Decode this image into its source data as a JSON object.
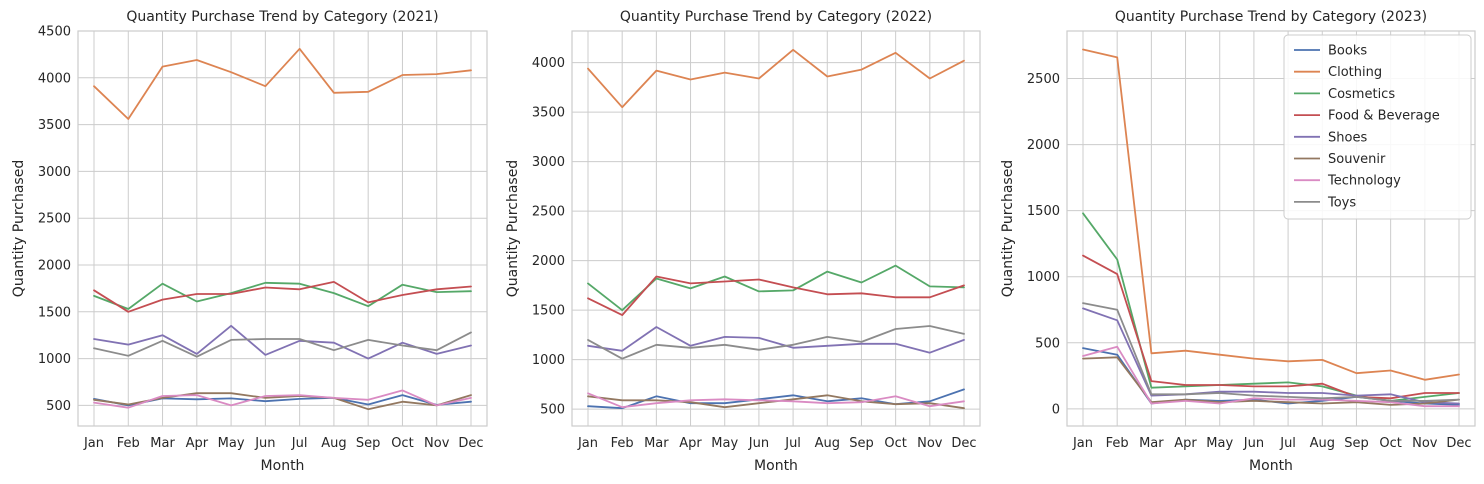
{
  "figure_colors": {
    "background": "#ffffff",
    "plot_background": "#ffffff",
    "grid": "#cccccc",
    "spine": "#cccccc",
    "text": "#262626"
  },
  "chart_data": [
    {
      "type": "line",
      "title": "Quantity Purchase Trend by Category (2021)",
      "xlabel": "Month",
      "ylabel": "Quantity Purchased",
      "categories": [
        "Jan",
        "Feb",
        "Mar",
        "Apr",
        "May",
        "Jun",
        "Jul",
        "Aug",
        "Sep",
        "Oct",
        "Nov",
        "Dec"
      ],
      "ylim": [
        280,
        4500
      ],
      "yticks": [
        500,
        1000,
        1500,
        2000,
        2500,
        3000,
        3500,
        4000,
        4500
      ],
      "grid": true,
      "legend": "none",
      "series": [
        {
          "name": "Books",
          "color": "#4c72b0",
          "values": [
            570,
            500,
            575,
            565,
            575,
            545,
            570,
            580,
            510,
            610,
            505,
            540
          ]
        },
        {
          "name": "Clothing",
          "color": "#dd8452",
          "values": [
            3910,
            3560,
            4120,
            4190,
            4060,
            3910,
            4310,
            3840,
            3850,
            4030,
            4040,
            4080
          ]
        },
        {
          "name": "Cosmetics",
          "color": "#55a868",
          "values": [
            1670,
            1530,
            1800,
            1610,
            1700,
            1810,
            1800,
            1700,
            1560,
            1790,
            1710,
            1720
          ]
        },
        {
          "name": "Food & Beverage",
          "color": "#c44e52",
          "values": [
            1730,
            1500,
            1630,
            1690,
            1690,
            1760,
            1740,
            1820,
            1600,
            1680,
            1740,
            1770
          ]
        },
        {
          "name": "Shoes",
          "color": "#8172b3",
          "values": [
            1210,
            1150,
            1250,
            1050,
            1350,
            1040,
            1190,
            1170,
            1000,
            1170,
            1050,
            1140
          ]
        },
        {
          "name": "Souvenir",
          "color": "#937860",
          "values": [
            560,
            510,
            580,
            630,
            630,
            580,
            600,
            580,
            460,
            540,
            500,
            610
          ]
        },
        {
          "name": "Technology",
          "color": "#da8bc3",
          "values": [
            530,
            475,
            600,
            610,
            500,
            600,
            610,
            580,
            560,
            660,
            500,
            580
          ]
        },
        {
          "name": "Toys",
          "color": "#8c8c8c",
          "values": [
            1110,
            1030,
            1190,
            1020,
            1200,
            1210,
            1210,
            1090,
            1200,
            1140,
            1090,
            1280
          ]
        }
      ]
    },
    {
      "type": "line",
      "title": "Quantity Purchase Trend by Category (2022)",
      "xlabel": "Month",
      "ylabel": "Quantity Purchased",
      "categories": [
        "Jan",
        "Feb",
        "Mar",
        "Apr",
        "May",
        "Jun",
        "Jul",
        "Aug",
        "Sep",
        "Oct",
        "Nov",
        "Dec"
      ],
      "ylim": [
        330,
        4320
      ],
      "yticks": [
        500,
        1000,
        1500,
        2000,
        2500,
        3000,
        3500,
        4000
      ],
      "grid": true,
      "legend": "none",
      "series": [
        {
          "name": "Books",
          "color": "#4c72b0",
          "values": [
            530,
            510,
            630,
            560,
            560,
            600,
            640,
            580,
            610,
            550,
            580,
            700
          ]
        },
        {
          "name": "Clothing",
          "color": "#dd8452",
          "values": [
            3940,
            3550,
            3920,
            3830,
            3900,
            3840,
            4130,
            3860,
            3930,
            4100,
            3840,
            4020
          ]
        },
        {
          "name": "Cosmetics",
          "color": "#55a868",
          "values": [
            1770,
            1500,
            1820,
            1720,
            1840,
            1690,
            1700,
            1890,
            1780,
            1950,
            1740,
            1730
          ]
        },
        {
          "name": "Food & Beverage",
          "color": "#c44e52",
          "values": [
            1620,
            1450,
            1840,
            1770,
            1790,
            1810,
            1730,
            1660,
            1670,
            1630,
            1630,
            1750
          ]
        },
        {
          "name": "Shoes",
          "color": "#8172b3",
          "values": [
            1140,
            1090,
            1330,
            1140,
            1230,
            1220,
            1120,
            1140,
            1160,
            1160,
            1070,
            1200
          ]
        },
        {
          "name": "Souvenir",
          "color": "#937860",
          "values": [
            630,
            590,
            590,
            570,
            520,
            560,
            600,
            640,
            580,
            550,
            560,
            510
          ]
        },
        {
          "name": "Technology",
          "color": "#da8bc3",
          "values": [
            660,
            520,
            560,
            590,
            600,
            590,
            580,
            560,
            570,
            630,
            530,
            580
          ]
        },
        {
          "name": "Toys",
          "color": "#8c8c8c",
          "values": [
            1200,
            1010,
            1150,
            1120,
            1150,
            1100,
            1150,
            1230,
            1180,
            1310,
            1340,
            1260
          ]
        }
      ]
    },
    {
      "type": "line",
      "title": "Quantity Purchase Trend by Category (2023)",
      "xlabel": "Month",
      "ylabel": "Quantity Purchased",
      "categories": [
        "Jan",
        "Feb",
        "Mar",
        "Apr",
        "May",
        "Jun",
        "Jul",
        "Aug",
        "Sep",
        "Oct",
        "Nov",
        "Dec"
      ],
      "ylim": [
        -130,
        2860
      ],
      "yticks": [
        0,
        500,
        1000,
        1500,
        2000,
        2500
      ],
      "grid": true,
      "legend": "top-right",
      "series": [
        {
          "name": "Books",
          "color": "#4c72b0",
          "values": [
            460,
            410,
            40,
            70,
            60,
            70,
            40,
            60,
            90,
            60,
            40,
            30
          ]
        },
        {
          "name": "Clothing",
          "color": "#dd8452",
          "values": [
            2720,
            2660,
            420,
            440,
            410,
            380,
            360,
            370,
            270,
            290,
            220,
            260
          ]
        },
        {
          "name": "Cosmetics",
          "color": "#55a868",
          "values": [
            1480,
            1130,
            160,
            170,
            180,
            190,
            200,
            170,
            100,
            60,
            90,
            120
          ]
        },
        {
          "name": "Food & Beverage",
          "color": "#c44e52",
          "values": [
            1160,
            1020,
            210,
            180,
            180,
            170,
            170,
            190,
            90,
            80,
            120,
            120
          ]
        },
        {
          "name": "Shoes",
          "color": "#8172b3",
          "values": [
            760,
            670,
            100,
            110,
            130,
            130,
            120,
            120,
            100,
            110,
            50,
            40
          ]
        },
        {
          "name": "Souvenir",
          "color": "#937860",
          "values": [
            380,
            390,
            50,
            70,
            50,
            60,
            50,
            40,
            50,
            30,
            40,
            70
          ]
        },
        {
          "name": "Technology",
          "color": "#da8bc3",
          "values": [
            400,
            470,
            40,
            60,
            40,
            80,
            70,
            70,
            60,
            50,
            20,
            20
          ]
        },
        {
          "name": "Toys",
          "color": "#8c8c8c",
          "values": [
            800,
            750,
            110,
            110,
            120,
            100,
            90,
            80,
            90,
            60,
            60,
            70
          ]
        }
      ]
    }
  ]
}
